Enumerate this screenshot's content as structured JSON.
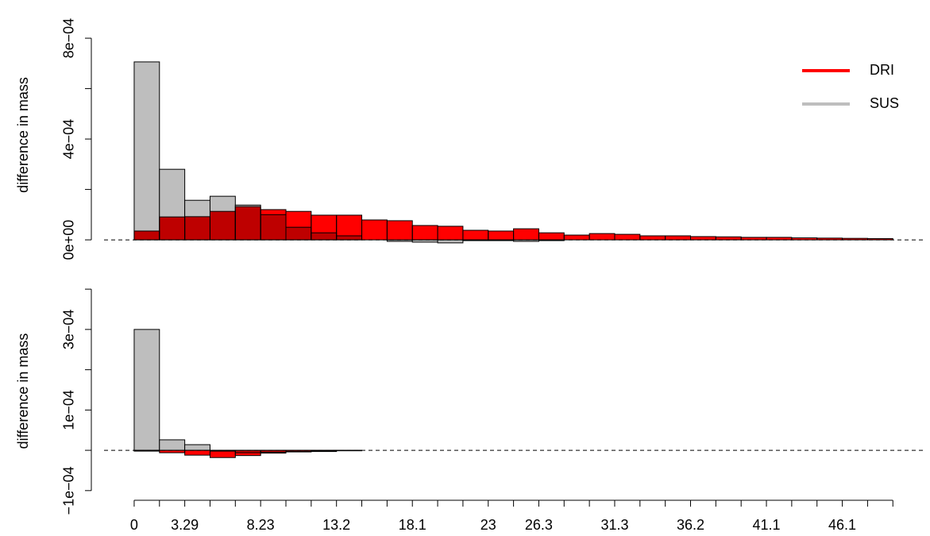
{
  "chart_data": [
    {
      "type": "histogram",
      "y_label": "difference in mass",
      "bins": [
        0,
        1.645,
        3.29,
        4.935,
        6.58,
        8.225,
        9.87,
        11.515,
        13.16,
        14.805,
        16.45,
        18.095,
        19.74,
        21.385,
        23.03,
        24.675,
        26.32,
        27.965,
        29.61,
        31.255,
        32.9,
        34.545,
        36.19,
        37.835,
        39.48,
        41.125,
        42.77,
        44.415,
        46.06,
        47.705,
        49.35
      ],
      "series": [
        {
          "name": "SUS",
          "color": "#bebebe",
          "values": [
            0.000706,
            0.00028,
            0.000157,
            0.000173,
            0.000138,
            0.0001,
            5e-05,
            2.8e-05,
            1.6e-05,
            0,
            -6e-06,
            -9e-06,
            -1.2e-05,
            -3e-06,
            -3e-06,
            -6e-06,
            -3e-06,
            0,
            0,
            0,
            0,
            0,
            0,
            0,
            0,
            0,
            0,
            0,
            0,
            0
          ]
        },
        {
          "name": "DRI",
          "color": "#ff0000",
          "values": [
            3.5e-05,
            9.1e-05,
            9.2e-05,
            0.000113,
            0.000132,
            0.00012,
            0.000113,
            9.8e-05,
            9.8e-05,
            7.9e-05,
            7.6e-05,
            5.7e-05,
            5.4e-05,
            3.8e-05,
            3.5e-05,
            4.4e-05,
            2.8e-05,
            1.9e-05,
            2.5e-05,
            2.2e-05,
            1.6e-05,
            1.6e-05,
            1.3e-05,
            1.2e-05,
            1e-05,
            1e-05,
            8e-06,
            7e-06,
            6e-06,
            5e-06
          ]
        }
      ],
      "xlim": [
        -1.96,
        51.3
      ],
      "ylim": [
        -2.5e-05,
        0.000857
      ],
      "yticks": [
        {
          "value": 0,
          "label": "0e+00"
        },
        {
          "value": 0.0004,
          "label": "4e−04"
        },
        {
          "value": 0.0008,
          "label": "8e−04"
        }
      ],
      "yticks_minor": [
        0.0002,
        0.0006
      ],
      "legend": "top-right"
    },
    {
      "type": "histogram",
      "y_label": "difference in mass",
      "bins": [
        0,
        1.645,
        3.29,
        4.935,
        6.58,
        8.225,
        9.87,
        11.515,
        13.16,
        14.805,
        16.45,
        18.095,
        19.74,
        21.385,
        23.03,
        24.675,
        26.32,
        27.965,
        29.61,
        31.255,
        32.9,
        34.545,
        36.19,
        37.835,
        39.48,
        41.125,
        42.77,
        44.415,
        46.06,
        47.705,
        49.35
      ],
      "series": [
        {
          "name": "SUS",
          "color": "#bebebe",
          "values": [
            0.0003,
            2.6e-05,
            1.4e-05,
            -2e-06,
            -6e-06,
            -5e-06,
            -3e-06,
            -2e-06,
            -1e-06,
            0,
            0,
            0,
            0,
            0,
            0,
            0,
            0,
            0,
            0,
            0,
            0,
            0,
            0,
            0,
            0,
            0,
            0,
            0,
            0,
            0
          ]
        },
        {
          "name": "DRI",
          "color": "#ff0000",
          "values": [
            -2e-06,
            -6e-06,
            -1.2e-05,
            -1.8e-05,
            -1.3e-05,
            -7e-06,
            -4e-06,
            -3e-06,
            -1e-06,
            0,
            0,
            0,
            0,
            0,
            0,
            0,
            0,
            0,
            0,
            0,
            0,
            0,
            0,
            0,
            0,
            0,
            0,
            0,
            0,
            0
          ]
        }
      ],
      "xlim": [
        -1.96,
        51.3
      ],
      "ylim": [
        -0.000124,
        0.000418
      ],
      "yticks": [
        {
          "value": -0.0001,
          "label": "−1e−04"
        },
        {
          "value": 0.0001,
          "label": "1e−04"
        },
        {
          "value": 0.0003,
          "label": "3e−04"
        }
      ],
      "yticks_minor": [
        0,
        0.0002,
        0.0004
      ],
      "xticks": [
        0,
        3.29,
        {
          "value": 8.225,
          "label": "8.23"
        },
        {
          "value": 13.16,
          "label": "13.2"
        },
        {
          "value": 18.095,
          "label": "18.1"
        },
        {
          "value": 23.03,
          "label": "23"
        },
        {
          "value": 26.32,
          "label": "26.3"
        },
        {
          "value": 31.255,
          "label": "31.3"
        },
        {
          "value": 36.19,
          "label": "36.2"
        },
        {
          "value": 41.125,
          "label": "41.1"
        },
        {
          "value": 46.06,
          "label": "46.1"
        }
      ]
    }
  ]
}
